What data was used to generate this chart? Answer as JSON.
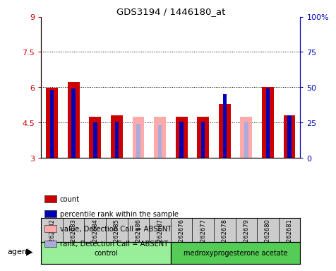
{
  "title": "GDS3194 / 1446180_at",
  "samples": [
    "GSM262682",
    "GSM262683",
    "GSM262684",
    "GSM262685",
    "GSM262686",
    "GSM262687",
    "GSM262676",
    "GSM262677",
    "GSM262678",
    "GSM262679",
    "GSM262680",
    "GSM262681"
  ],
  "groups": [
    "control",
    "control",
    "control",
    "control",
    "control",
    "control",
    "medroxyprogesterone acetate",
    "medroxyprogesterone acetate",
    "medroxyprogesterone acetate",
    "medroxyprogesterone acetate",
    "medroxyprogesterone acetate",
    "medroxyprogesterone acetate"
  ],
  "red_values": [
    5.98,
    6.22,
    4.75,
    4.8,
    0.0,
    0.0,
    4.75,
    4.75,
    5.3,
    0.0,
    6.0,
    4.82
  ],
  "blue_values": [
    5.9,
    5.95,
    4.5,
    4.55,
    0.0,
    0.0,
    4.55,
    4.55,
    5.7,
    0.0,
    5.95,
    4.82
  ],
  "pink_values": [
    0.0,
    0.0,
    0.0,
    0.0,
    4.75,
    4.75,
    0.0,
    0.0,
    0.0,
    4.75,
    0.0,
    0.0
  ],
  "lav_values": [
    0.0,
    0.0,
    0.0,
    0.0,
    4.45,
    4.4,
    0.0,
    0.0,
    0.0,
    4.55,
    0.0,
    0.0
  ],
  "absent_mask": [
    false,
    false,
    false,
    false,
    true,
    true,
    false,
    false,
    false,
    true,
    false,
    false
  ],
  "ylim_left": [
    3,
    9
  ],
  "ylim_right": [
    0,
    100
  ],
  "yticks_left": [
    3,
    4.5,
    6.0,
    7.5,
    9
  ],
  "ytick_labels_left": [
    "3",
    "4.5",
    "6",
    "7.5",
    "9"
  ],
  "yticks_right": [
    0,
    25,
    50,
    75,
    100
  ],
  "ytick_labels_right": [
    "0",
    "25",
    "50",
    "75",
    "100%"
  ],
  "hlines": [
    4.5,
    6.0,
    7.5
  ],
  "red_color": "#cc0000",
  "blue_color": "#0000bb",
  "pink_color": "#ffaaaa",
  "lav_color": "#aaaadd",
  "tick_bg_color": "#cccccc",
  "control_color": "#99ee99",
  "treat_color": "#55cc55",
  "legend_items": [
    "count",
    "percentile rank within the sample",
    "value, Detection Call = ABSENT",
    "rank, Detection Call = ABSENT"
  ],
  "legend_colors": [
    "#cc0000",
    "#0000bb",
    "#ffaaaa",
    "#aaaadd"
  ]
}
